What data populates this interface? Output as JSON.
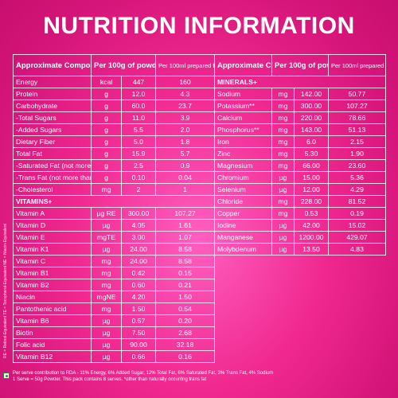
{
  "title": "NUTRITION INFORMATION",
  "left": {
    "header": {
      "col1": "Approximate Composition",
      "col2": "Per 100g of powder^",
      "col3": "Per 100ml prepared feed"
    },
    "rows": [
      {
        "name": "Energy",
        "unit": "kcal",
        "per100g": "447",
        "per100ml": "160"
      },
      {
        "name": "Protein",
        "unit": "g",
        "per100g": "12.0",
        "per100ml": "4.3"
      },
      {
        "name": "Carbohydrate",
        "unit": "g",
        "per100g": "60.0",
        "per100ml": "23.7"
      },
      {
        "name": "-Total Sugars",
        "unit": "g",
        "per100g": "11.0",
        "per100ml": "3.9"
      },
      {
        "name": "-Added Sugars",
        "unit": "g",
        "per100g": "5.5",
        "per100ml": "2.0"
      },
      {
        "name": "Dietary Fiber",
        "unit": "g",
        "per100g": "5.0",
        "per100ml": "1.8"
      },
      {
        "name": "Total Fat",
        "unit": "g",
        "per100g": "15.9",
        "per100ml": "5.7"
      },
      {
        "name": "-Saturated Fat (not more than)",
        "unit": "g",
        "per100g": "2.5",
        "per100ml": "0.9"
      },
      {
        "name": "-Trans Fat (not more than)*",
        "unit": "g",
        "per100g": "0.10",
        "per100ml": "0.04"
      },
      {
        "name": "-Cholesterol",
        "unit": "mg",
        "per100g": "2",
        "per100ml": "1"
      }
    ],
    "vitamins_label": "VITAMINS+",
    "vitamins": [
      {
        "name": "Vitamin A",
        "unit": "µg RE",
        "per100g": "300.00",
        "per100ml": "107.27"
      },
      {
        "name": "Vitamin D",
        "unit": "µg",
        "per100g": "4.05",
        "per100ml": "1.61"
      },
      {
        "name": "Vitamin E",
        "unit": "mgTE",
        "per100g": "3.00",
        "per100ml": "1.07"
      },
      {
        "name": "Vitamin K1",
        "unit": "µg",
        "per100g": "24.00",
        "per100ml": "8.58"
      },
      {
        "name": "Vitamin C",
        "unit": "mg",
        "per100g": "24.00",
        "per100ml": "8.58"
      },
      {
        "name": "Vitamin B1",
        "unit": "mg",
        "per100g": "0.42",
        "per100ml": "0.15"
      },
      {
        "name": "Vitamin B2",
        "unit": "mg",
        "per100g": "0.60",
        "per100ml": "0.21"
      },
      {
        "name": "Niacin",
        "unit": "mgNE",
        "per100g": "4.20",
        "per100ml": "1.50"
      },
      {
        "name": "Pantothenic acid",
        "unit": "mg",
        "per100g": "1.50",
        "per100ml": "0.54"
      },
      {
        "name": "Vitamin B6",
        "unit": "µg",
        "per100g": "0.57",
        "per100ml": "0.20"
      },
      {
        "name": "Biotin",
        "unit": "µg",
        "per100g": "7.50",
        "per100ml": "2.68"
      },
      {
        "name": "Folic acid",
        "unit": "µg",
        "per100g": "90.00",
        "per100ml": "32.18"
      },
      {
        "name": "Vitamin B12",
        "unit": "µg",
        "per100g": "0.66",
        "per100ml": "0.16"
      }
    ]
  },
  "right": {
    "header": {
      "col1": "Approximate Composition",
      "col2": "Per 100g of powder^",
      "col3": "Per 100ml prepared feed"
    },
    "minerals_label": "MINERALS+",
    "minerals": [
      {
        "name": "Sodium",
        "unit": "mg",
        "per100g": "142.00",
        "per100ml": "50.77"
      },
      {
        "name": "Potassium**",
        "unit": "mg",
        "per100g": "300.00",
        "per100ml": "107.27"
      },
      {
        "name": "Calcium",
        "unit": "mg",
        "per100g": "220.00",
        "per100ml": "78.66"
      },
      {
        "name": "Phosphorus**",
        "unit": "mg",
        "per100g": "143.00",
        "per100ml": "51.13"
      },
      {
        "name": "Iron",
        "unit": "mg",
        "per100g": "6.0",
        "per100ml": "2.15"
      },
      {
        "name": "Zinc",
        "unit": "mg",
        "per100g": "5.30",
        "per100ml": "1.90"
      },
      {
        "name": "Magnesium",
        "unit": "mg",
        "per100g": "66.00",
        "per100ml": "23.60"
      },
      {
        "name": "Chromium",
        "unit": "µg",
        "per100g": "15.00",
        "per100ml": "5.36"
      },
      {
        "name": "Selenium",
        "unit": "µg",
        "per100g": "12.00",
        "per100ml": "4.29"
      },
      {
        "name": "Chloride",
        "unit": "mg",
        "per100g": "228.00",
        "per100ml": "81.52"
      },
      {
        "name": "Copper",
        "unit": "mg",
        "per100g": "0.53",
        "per100ml": "0.19"
      },
      {
        "name": "Iodine",
        "unit": "µg",
        "per100g": "42.00",
        "per100ml": "15.02"
      },
      {
        "name": "Manganese",
        "unit": "µg",
        "per100g": "1200.00",
        "per100ml": "429.07"
      },
      {
        "name": "Molybdenum",
        "unit": "µg",
        "per100g": "13.50",
        "per100ml": "4.83"
      }
    ]
  },
  "sidenote": "RE = Retinol-Equivalent    TE = Tocopherol-Equivalent    NE = Niacin-Equivalent",
  "footer": {
    "line1": "Per serve contribution to RDA - 11% Energy, 6% Added Sugar, 12% Total Fat, 6% Saturated Fat, 3% Trans Fat, 4% Sodium",
    "line2": "1 Serve = 50g Powder. This pack contains 8 serves. *other than naturally occurring trans fat"
  },
  "colors": {
    "background": "#e91e8c",
    "text": "#ffffff",
    "veg_mark": "#1f8a3c"
  }
}
